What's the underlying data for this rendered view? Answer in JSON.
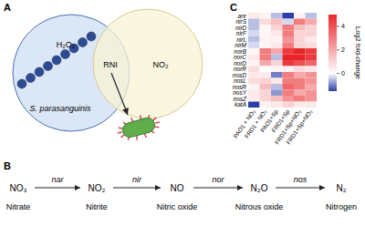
{
  "chart_data": {
    "type": "heatmap",
    "rows": [
      "anr",
      "nirS",
      "nirD",
      "nirF",
      "nirL",
      "nirM",
      "norB",
      "norC",
      "norD",
      "norR",
      "nosD",
      "nosL",
      "nosR",
      "nosY",
      "nosZ",
      "katA"
    ],
    "columns": [
      "PAO1 + NO₂",
      "FRD1 + NO₂",
      "PAO1+Sp",
      "FRD1+Sp",
      "FRD1+Sp+NO₂",
      "FRD1+Sp+NO₂"
    ],
    "cells": [
      [
        0.5,
        0.3,
        -0.5,
        -1.5,
        0.3,
        -0.5
      ],
      [
        -0.5,
        0.8,
        1.5,
        -0.3,
        3,
        2
      ],
      [
        -0.5,
        0.2,
        1,
        3,
        1.5,
        1
      ],
      [
        -0.3,
        0.2,
        0.5,
        3,
        1,
        1
      ],
      [
        -0.5,
        0.3,
        0.3,
        2.5,
        1,
        0.5
      ],
      [
        -0.3,
        0.2,
        0.5,
        3,
        1,
        0.8
      ],
      [
        0.2,
        3,
        2,
        4.5,
        5,
        4.5
      ],
      [
        0.5,
        3,
        -0.5,
        5,
        5,
        4.5
      ],
      [
        0.3,
        2,
        1,
        4.5,
        4,
        3.5
      ],
      [
        0.8,
        0,
        0.3,
        0.3,
        0.8,
        0.5
      ],
      [
        0.5,
        0.5,
        -1,
        3,
        2,
        2.5
      ],
      [
        0.8,
        1,
        0.5,
        3,
        3,
        2.5
      ],
      [
        0.3,
        1.5,
        -0.5,
        3.5,
        3,
        2
      ],
      [
        0.5,
        1,
        -0.8,
        3,
        2,
        2.5
      ],
      [
        0.5,
        1,
        1.5,
        2.5,
        3,
        2.5
      ],
      [
        -1.5,
        0.3,
        0.5,
        1,
        0.5,
        0.5
      ]
    ],
    "color_range": [
      -1.5,
      5
    ],
    "color_ticks": [
      0,
      2,
      4
    ],
    "color_label": "Log2 fold-change"
  },
  "diagram": {
    "panel_labels": [
      "A",
      "B",
      "C"
    ],
    "panel_a": {
      "circles": [
        "H₂O₂",
        "NO₂"
      ],
      "overlap": "RNI",
      "source": "S. parasanguinis"
    },
    "panel_b": {
      "steps": [
        {
          "formula": "NO₃",
          "name": "Nitrate"
        },
        {
          "formula": "NO₂",
          "name": "Nitrite"
        },
        {
          "formula": "NO",
          "name": "Nitric oxide"
        },
        {
          "formula": "N₂O",
          "name": "Nitrous oxide"
        },
        {
          "formula": "N₂",
          "name": "Nitrogen"
        }
      ],
      "enzymes": [
        "nar",
        "nir",
        "nor",
        "nos"
      ]
    }
  }
}
